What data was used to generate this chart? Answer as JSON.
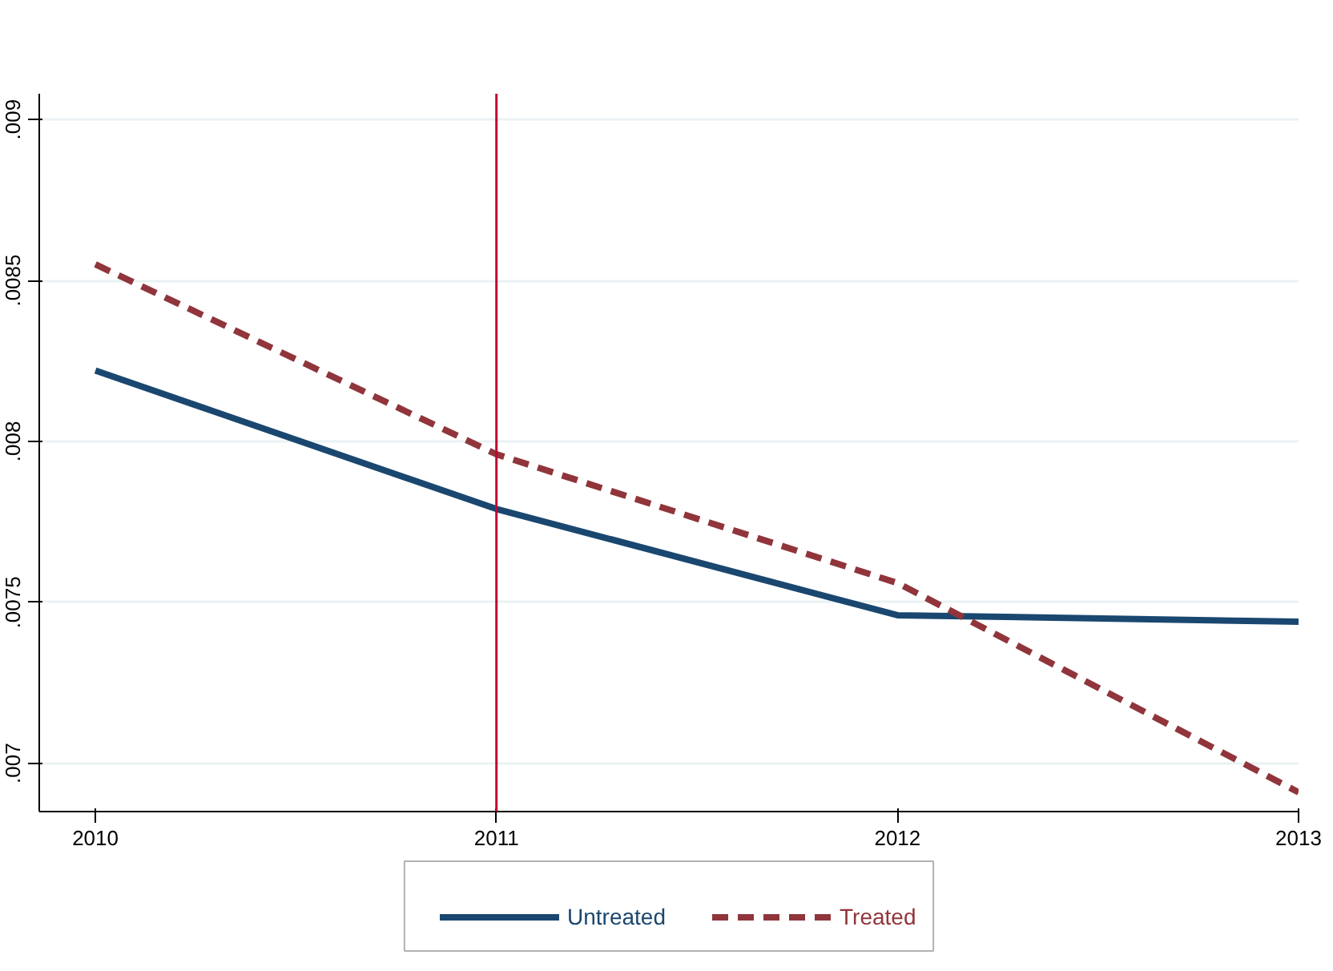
{
  "chart_data": {
    "type": "line",
    "x": [
      2010,
      2011,
      2012,
      2013
    ],
    "series": [
      {
        "name": "Untreated",
        "color": "#1a476f",
        "values": [
          0.00822,
          0.00779,
          0.00746,
          0.00744
        ],
        "line_style": "solid"
      },
      {
        "name": "Treated",
        "color": "#90353b",
        "values": [
          0.00855,
          0.00796,
          0.00756,
          0.00691
        ],
        "line_style": "dashed"
      }
    ],
    "xlim": [
      2009.86,
      2013.0
    ],
    "ylim": [
      0.00685,
      0.00908
    ],
    "xticks": [
      2010,
      2011,
      2012,
      2013
    ],
    "yticks": [
      {
        "value": 0.007,
        "label": ".007"
      },
      {
        "value": 0.0075,
        "label": ".0075"
      },
      {
        "value": 0.008,
        "label": ".008"
      },
      {
        "value": 0.0085,
        "label": ".0085"
      },
      {
        "value": 0.009,
        "label": ".009"
      }
    ],
    "ref_lines": [
      {
        "axis": "x",
        "value": 2011,
        "color": "#c10534"
      }
    ],
    "grid": "y",
    "legend": "bottom"
  }
}
